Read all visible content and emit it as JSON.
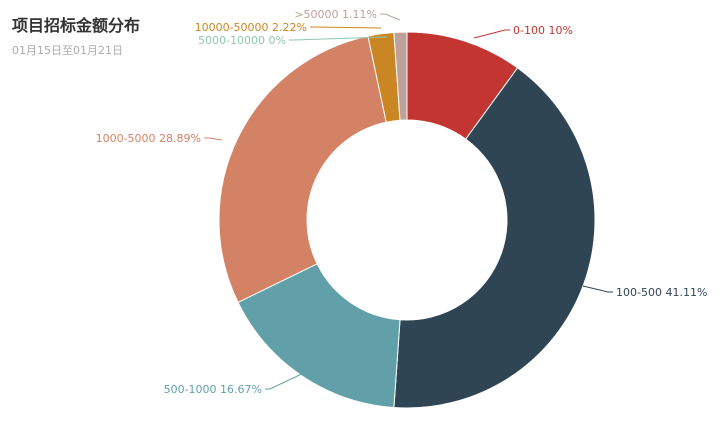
{
  "title": "项目招标金额分布",
  "subtitle": "01月15日至01月21日",
  "chart_data": {
    "type": "pie",
    "donut": true,
    "title": "项目招标金额分布",
    "subtitle": "01月15日至01月21日",
    "slices": [
      {
        "name": "0-100",
        "value": 10,
        "label": "0-100 10%",
        "color": "#c23531"
      },
      {
        "name": "100-500",
        "value": 41.11,
        "label": "100-500 41.11%",
        "color": "#2f4554"
      },
      {
        "name": "500-1000",
        "value": 16.67,
        "label": "500-1000 16.67%",
        "color": "#61a0a8"
      },
      {
        "name": "1000-5000",
        "value": 28.89,
        "label": "1000-5000 28.89%",
        "color": "#d48265"
      },
      {
        "name": "5000-10000",
        "value": 0,
        "label": "5000-10000 0%",
        "color": "#91c7ae"
      },
      {
        "name": "10000-50000",
        "value": 2.22,
        "label": "10000-50000 2.22%",
        "color": "#ca8622"
      },
      {
        "name": ">50000",
        "value": 1.11,
        "label": ">50000 1.11%",
        "color": "#bda29a"
      }
    ]
  }
}
